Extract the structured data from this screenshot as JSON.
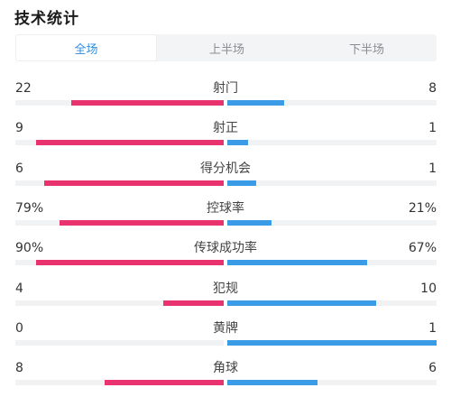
{
  "header": {
    "title": "技术统计"
  },
  "tabs": [
    {
      "label": "全场",
      "active": true
    },
    {
      "label": "上半场",
      "active": false
    },
    {
      "label": "下半场",
      "active": false
    }
  ],
  "colors": {
    "home": "#e8336e",
    "away": "#3a9ce6",
    "tab_active": "#2f8ee0"
  },
  "stats": [
    {
      "label": "射门",
      "home": "22",
      "away": "8",
      "home_share": 0.73,
      "away_share": 0.27
    },
    {
      "label": "射正",
      "home": "9",
      "away": "1",
      "home_share": 0.9,
      "away_share": 0.1
    },
    {
      "label": "得分机会",
      "home": "6",
      "away": "1",
      "home_share": 0.86,
      "away_share": 0.14
    },
    {
      "label": "控球率",
      "home": "79%",
      "away": "21%",
      "home_share": 0.79,
      "away_share": 0.21
    },
    {
      "label": "传球成功率",
      "home": "90%",
      "away": "67%",
      "home_share": 0.9,
      "away_share": 0.67
    },
    {
      "label": "犯规",
      "home": "4",
      "away": "10",
      "home_share": 0.29,
      "away_share": 0.71
    },
    {
      "label": "黄牌",
      "home": "0",
      "away": "1",
      "home_share": 0.0,
      "away_share": 1.0
    },
    {
      "label": "角球",
      "home": "8",
      "away": "6",
      "home_share": 0.57,
      "away_share": 0.43
    }
  ]
}
